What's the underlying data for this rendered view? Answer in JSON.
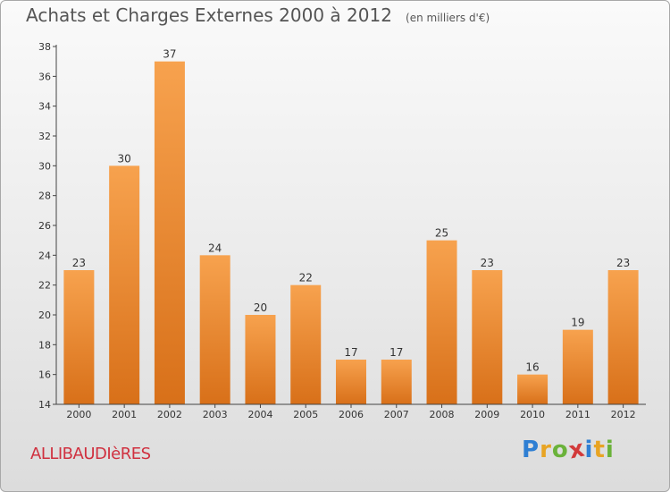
{
  "chart_data": {
    "type": "bar",
    "title": "Achats et Charges Externes 2000 à 2012",
    "subtitle": "(en milliers d'€)",
    "categories": [
      "2000",
      "2001",
      "2002",
      "2003",
      "2004",
      "2005",
      "2006",
      "2007",
      "2008",
      "2009",
      "2010",
      "2011",
      "2012"
    ],
    "values": [
      23,
      30,
      37,
      24,
      20,
      22,
      17,
      17,
      25,
      23,
      16,
      19,
      23
    ],
    "ylim": [
      14,
      38
    ],
    "yticks": [
      14,
      16,
      18,
      20,
      22,
      24,
      26,
      28,
      30,
      32,
      34,
      36,
      38
    ],
    "xlabel": "",
    "ylabel": "",
    "grid": false,
    "bar_color": "#f0923a"
  },
  "footer": {
    "commune": "ALLIBAUDIèRES",
    "brand_letters": [
      "P",
      "r",
      "o",
      "x",
      "i",
      "t",
      "i"
    ],
    "brand_colors": [
      "#2f7fd3",
      "#e8a423",
      "#6ab23a",
      "#d23a3a",
      "#2f7fd3",
      "#e8a423",
      "#6ab23a"
    ]
  },
  "colors": {
    "title_text": "#555555",
    "commune_text": "#d0303f"
  }
}
